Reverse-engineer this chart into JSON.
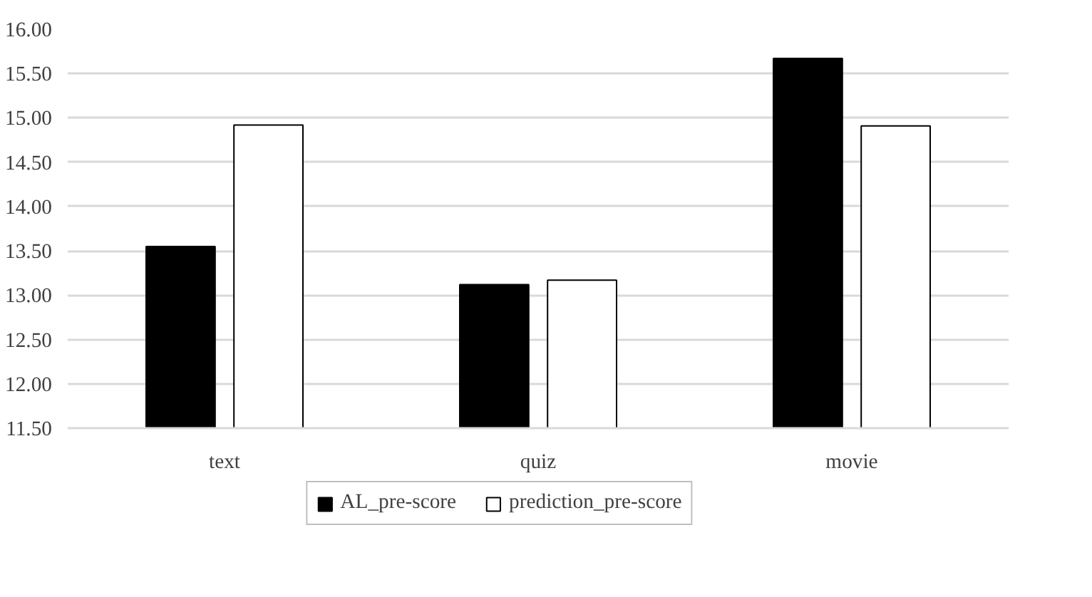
{
  "chart_data": {
    "type": "bar",
    "categories": [
      "text",
      "quiz",
      "movie"
    ],
    "series": [
      {
        "name": "AL_pre-score",
        "color": "#000000",
        "values": [
          13.55,
          13.12,
          15.67
        ]
      },
      {
        "name": "prediction_pre-score",
        "color": "#ffffff",
        "values": [
          14.92,
          13.17,
          14.91
        ]
      }
    ],
    "ylim": [
      11.5,
      16.0
    ],
    "yticks": [
      {
        "value": 11.5,
        "label": "11.50"
      },
      {
        "value": 12.0,
        "label": "12.00"
      },
      {
        "value": 12.5,
        "label": "12.50"
      },
      {
        "value": 13.0,
        "label": "13.00"
      },
      {
        "value": 13.5,
        "label": "13.50"
      },
      {
        "value": 14.0,
        "label": "14.00"
      },
      {
        "value": 14.5,
        "label": "14.50"
      },
      {
        "value": 15.0,
        "label": "15.00"
      },
      {
        "value": 15.5,
        "label": "15.50"
      },
      {
        "value": 16.0,
        "label": "16.00"
      }
    ],
    "grid": "y",
    "legend": "bottom"
  }
}
